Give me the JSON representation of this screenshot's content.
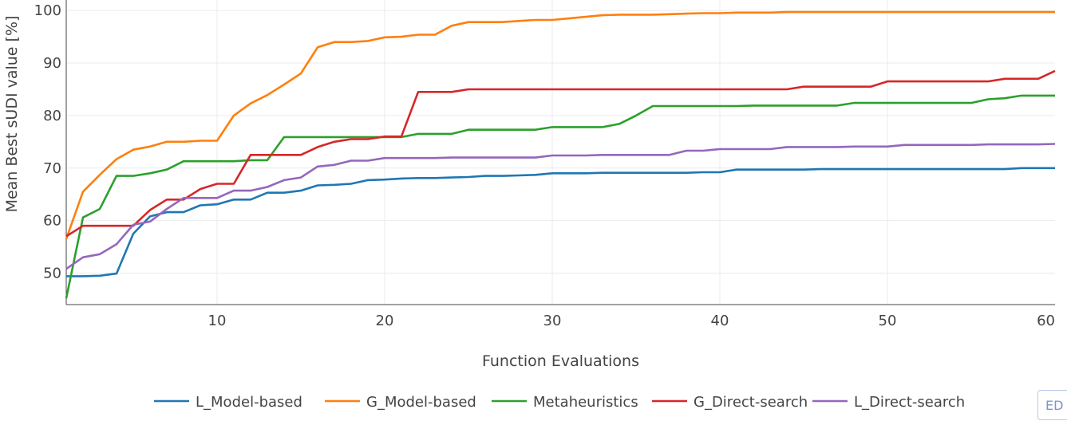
{
  "chart_data": {
    "type": "line",
    "title": "",
    "xlabel": "Function Evaluations",
    "ylabel": "Mean Best sUDI value [%]",
    "xlim": [
      1,
      60
    ],
    "ylim": [
      44,
      102
    ],
    "xticks": [
      10,
      20,
      30,
      40,
      50,
      60
    ],
    "yticks": [
      50,
      60,
      70,
      80,
      90,
      100
    ],
    "grid": true,
    "legend": "bottom",
    "series": [
      {
        "name": "L_Model-based",
        "color": "#1f77b4",
        "x": [
          1,
          2,
          3,
          4,
          5,
          6,
          7,
          8,
          9,
          10,
          11,
          12,
          13,
          14,
          15,
          16,
          17,
          18,
          19,
          20,
          21,
          22,
          23,
          24,
          25,
          26,
          27,
          28,
          29,
          30,
          31,
          32,
          33,
          34,
          35,
          36,
          37,
          38,
          39,
          40,
          41,
          42,
          43,
          44,
          45,
          46,
          47,
          48,
          49,
          50,
          51,
          52,
          53,
          54,
          55,
          56,
          57,
          58,
          59,
          60
        ],
        "y": [
          49.4,
          49.4,
          49.5,
          49.9,
          57.5,
          60.8,
          61.6,
          61.6,
          62.9,
          63.1,
          64.0,
          64.0,
          65.3,
          65.3,
          65.7,
          66.7,
          66.8,
          67.0,
          67.7,
          67.8,
          68.0,
          68.1,
          68.1,
          68.2,
          68.3,
          68.5,
          68.5,
          68.6,
          68.7,
          69.0,
          69.0,
          69.0,
          69.1,
          69.1,
          69.1,
          69.1,
          69.1,
          69.1,
          69.2,
          69.2,
          69.7,
          69.7,
          69.7,
          69.7,
          69.7,
          69.8,
          69.8,
          69.8,
          69.8,
          69.8,
          69.8,
          69.8,
          69.8,
          69.8,
          69.8,
          69.8,
          69.8,
          70.0,
          70.0,
          70.0
        ]
      },
      {
        "name": "G_Model-based",
        "color": "#ff7f0e",
        "x": [
          1,
          2,
          3,
          4,
          5,
          6,
          7,
          8,
          9,
          10,
          11,
          12,
          13,
          14,
          15,
          16,
          17,
          18,
          19,
          20,
          21,
          22,
          23,
          24,
          25,
          26,
          27,
          28,
          29,
          30,
          31,
          32,
          33,
          34,
          35,
          36,
          37,
          38,
          39,
          40,
          41,
          42,
          43,
          44,
          45,
          46,
          47,
          48,
          49,
          50,
          51,
          52,
          53,
          54,
          55,
          56,
          57,
          58,
          59,
          60
        ],
        "y": [
          56.5,
          65.5,
          68.7,
          71.7,
          73.5,
          74.1,
          75.0,
          75.0,
          75.2,
          75.2,
          80.0,
          82.3,
          83.9,
          85.9,
          88.0,
          93.0,
          94.0,
          94.0,
          94.2,
          94.9,
          95.0,
          95.4,
          95.4,
          97.1,
          97.8,
          97.8,
          97.8,
          98.0,
          98.2,
          98.2,
          98.5,
          98.8,
          99.1,
          99.2,
          99.2,
          99.2,
          99.3,
          99.4,
          99.5,
          99.5,
          99.6,
          99.6,
          99.6,
          99.7,
          99.7,
          99.7,
          99.7,
          99.7,
          99.7,
          99.7,
          99.7,
          99.7,
          99.7,
          99.7,
          99.7,
          99.7,
          99.7,
          99.7,
          99.7,
          99.7
        ]
      },
      {
        "name": "Metaheuristics",
        "color": "#2ca02c",
        "x": [
          1,
          2,
          3,
          4,
          5,
          6,
          7,
          8,
          9,
          10,
          11,
          12,
          13,
          14,
          15,
          16,
          17,
          18,
          19,
          20,
          21,
          22,
          23,
          24,
          25,
          26,
          27,
          28,
          29,
          30,
          31,
          32,
          33,
          34,
          35,
          36,
          37,
          38,
          39,
          40,
          41,
          42,
          43,
          44,
          45,
          46,
          47,
          48,
          49,
          50,
          51,
          52,
          53,
          54,
          55,
          56,
          57,
          58,
          59,
          60
        ],
        "y": [
          45.2,
          60.6,
          62.2,
          68.5,
          68.5,
          69.0,
          69.7,
          71.3,
          71.3,
          71.3,
          71.3,
          71.5,
          71.5,
          75.9,
          75.9,
          75.9,
          75.9,
          75.9,
          75.9,
          75.9,
          75.9,
          76.5,
          76.5,
          76.5,
          77.3,
          77.3,
          77.3,
          77.3,
          77.3,
          77.8,
          77.8,
          77.8,
          77.8,
          78.4,
          80.0,
          81.8,
          81.8,
          81.8,
          81.8,
          81.8,
          81.8,
          81.9,
          81.9,
          81.9,
          81.9,
          81.9,
          81.9,
          82.4,
          82.4,
          82.4,
          82.4,
          82.4,
          82.4,
          82.4,
          82.4,
          83.1,
          83.3,
          83.8,
          83.8,
          83.8
        ]
      },
      {
        "name": "G_Direct-search",
        "color": "#d62728",
        "x": [
          1,
          2,
          3,
          4,
          5,
          6,
          7,
          8,
          9,
          10,
          11,
          12,
          13,
          14,
          15,
          16,
          17,
          18,
          19,
          20,
          21,
          22,
          23,
          24,
          25,
          26,
          27,
          28,
          29,
          30,
          31,
          32,
          33,
          34,
          35,
          36,
          37,
          38,
          39,
          40,
          41,
          42,
          43,
          44,
          45,
          46,
          47,
          48,
          49,
          50,
          51,
          52,
          53,
          54,
          55,
          56,
          57,
          58,
          59,
          60
        ],
        "y": [
          57.0,
          59.0,
          59.0,
          59.0,
          59.0,
          62.0,
          64.0,
          64.0,
          66.0,
          67.0,
          67.0,
          72.5,
          72.5,
          72.5,
          72.5,
          74.0,
          75.0,
          75.5,
          75.5,
          76.0,
          76.0,
          84.5,
          84.5,
          84.5,
          85.0,
          85.0,
          85.0,
          85.0,
          85.0,
          85.0,
          85.0,
          85.0,
          85.0,
          85.0,
          85.0,
          85.0,
          85.0,
          85.0,
          85.0,
          85.0,
          85.0,
          85.0,
          85.0,
          85.0,
          85.5,
          85.5,
          85.5,
          85.5,
          85.5,
          86.5,
          86.5,
          86.5,
          86.5,
          86.5,
          86.5,
          86.5,
          87.0,
          87.0,
          87.0,
          88.5
        ]
      },
      {
        "name": "L_Direct-search",
        "color": "#9467bd",
        "x": [
          1,
          2,
          3,
          4,
          5,
          6,
          7,
          8,
          9,
          10,
          11,
          12,
          13,
          14,
          15,
          16,
          17,
          18,
          19,
          20,
          21,
          22,
          23,
          24,
          25,
          26,
          27,
          28,
          29,
          30,
          31,
          32,
          33,
          34,
          35,
          36,
          37,
          38,
          39,
          40,
          41,
          42,
          43,
          44,
          45,
          46,
          47,
          48,
          49,
          50,
          51,
          52,
          53,
          54,
          55,
          56,
          57,
          58,
          59,
          60
        ],
        "y": [
          50.8,
          53.0,
          53.6,
          55.5,
          59.2,
          59.8,
          62.2,
          64.3,
          64.3,
          64.3,
          65.7,
          65.7,
          66.4,
          67.7,
          68.2,
          70.3,
          70.6,
          71.4,
          71.4,
          71.9,
          71.9,
          71.9,
          71.9,
          72.0,
          72.0,
          72.0,
          72.0,
          72.0,
          72.0,
          72.4,
          72.4,
          72.4,
          72.5,
          72.5,
          72.5,
          72.5,
          72.5,
          73.3,
          73.3,
          73.6,
          73.6,
          73.6,
          73.6,
          74.0,
          74.0,
          74.0,
          74.0,
          74.1,
          74.1,
          74.1,
          74.4,
          74.4,
          74.4,
          74.4,
          74.4,
          74.5,
          74.5,
          74.5,
          74.5,
          74.6
        ]
      }
    ]
  },
  "toolbar": {
    "edit_label": "ED"
  }
}
